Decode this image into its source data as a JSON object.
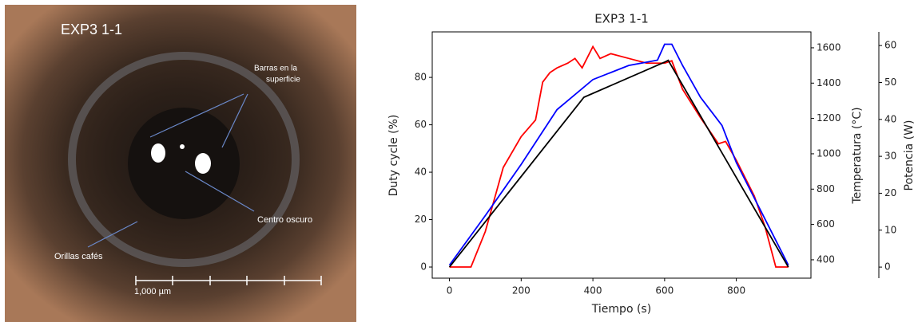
{
  "image": {
    "title": "EXP3 1-1",
    "labels": [
      "Barras en la",
      "superficie",
      "Centro oscuro",
      "Orillas cafés"
    ],
    "scale_bar": "1,000 µm"
  },
  "chart_data": {
    "type": "line",
    "title": "EXP3 1-1",
    "x_label": "Tiempo (s)",
    "y_label": "Duty cycle (%)",
    "y2_label": "Temperatura (°C)",
    "y3_label": "Potencia (W)",
    "xlim": [
      -48,
      1008
    ],
    "xticks": [
      0,
      200,
      400,
      600,
      800
    ],
    "ylim": [
      -4.7,
      99.2
    ],
    "yticks": [
      0,
      20,
      40,
      60,
      80
    ],
    "y2lim": [
      296,
      1690
    ],
    "y2ticks": [
      400,
      600,
      800,
      1000,
      1200,
      1400,
      1600
    ],
    "y3lim": [
      -3,
      63.7
    ],
    "y3ticks": [
      0,
      10,
      20,
      30,
      40,
      50,
      60
    ],
    "series": [
      {
        "color": "#ff0000",
        "axis": "y",
        "x": [
          0,
          60,
          100,
          150,
          200,
          240,
          260,
          280,
          300,
          330,
          350,
          370,
          400,
          420,
          450,
          500,
          550,
          600,
          620,
          650,
          700,
          750,
          770,
          800,
          850,
          880,
          910,
          945
        ],
        "values": [
          0,
          0,
          15,
          42,
          55,
          62,
          78,
          82,
          84,
          86,
          88,
          84,
          93,
          88,
          90,
          88,
          86,
          86,
          87,
          75,
          63,
          52,
          53,
          45,
          30,
          17,
          0,
          0
        ]
      },
      {
        "color": "#0000ff",
        "axis": "y2",
        "x": [
          0,
          100,
          200,
          300,
          400,
          500,
          580,
          600,
          620,
          650,
          700,
          760,
          800,
          850,
          900,
          945
        ],
        "values": [
          370,
          650,
          940,
          1250,
          1420,
          1500,
          1530,
          1620,
          1620,
          1500,
          1320,
          1160,
          950,
          750,
          550,
          370
        ]
      },
      {
        "color": "#000000",
        "axis": "y3",
        "x": [
          0,
          375,
          600,
          610,
          945
        ],
        "values": [
          0,
          46,
          55.5,
          56,
          0
        ]
      }
    ]
  }
}
